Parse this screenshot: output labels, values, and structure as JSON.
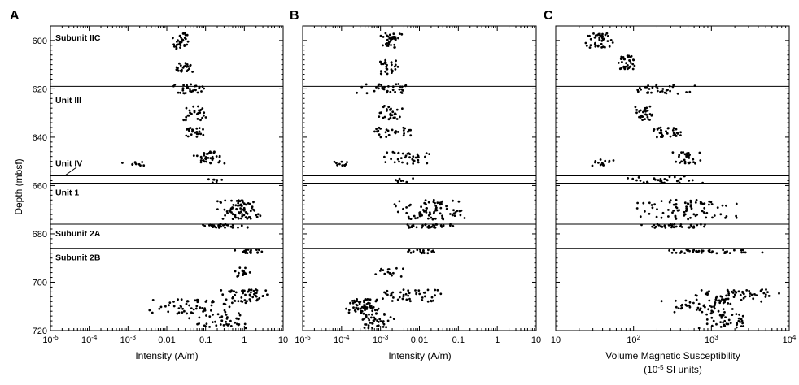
{
  "chart_data": [
    {
      "panel_label": "A",
      "type": "scatter",
      "xscale": "log",
      "xlim": [
        1e-05,
        10
      ],
      "ylim": [
        720,
        594
      ],
      "xlabel": "Intensity (A/m)",
      "xlabel_line2": "",
      "ylabel": "Depth (mbsf)",
      "xticks": [
        {
          "v": 1e-05,
          "base": "10",
          "exp": "-5"
        },
        {
          "v": 0.0001,
          "base": "10",
          "exp": "-4"
        },
        {
          "v": 0.001,
          "base": "10",
          "exp": "-3"
        },
        {
          "v": 0.01,
          "base": "0.01",
          "exp": ""
        },
        {
          "v": 0.1,
          "base": "0.1",
          "exp": ""
        },
        {
          "v": 1,
          "base": "1",
          "exp": ""
        },
        {
          "v": 10,
          "base": "10",
          "exp": ""
        }
      ],
      "yticks": [
        600,
        620,
        640,
        660,
        680,
        700,
        720
      ],
      "clusters": [
        {
          "y": [
            597,
            604
          ],
          "x": [
            0.012,
            0.04
          ],
          "n": 34
        },
        {
          "y": [
            609,
            613
          ],
          "x": [
            0.015,
            0.06
          ],
          "n": 24
        },
        {
          "y": [
            618,
            622
          ],
          "x": [
            0.01,
            0.12
          ],
          "n": 30
        },
        {
          "y": [
            627,
            633
          ],
          "x": [
            0.025,
            0.12
          ],
          "n": 26
        },
        {
          "y": [
            636,
            640
          ],
          "x": [
            0.03,
            0.1
          ],
          "n": 24
        },
        {
          "y": [
            646,
            651
          ],
          "x": [
            0.04,
            0.35
          ],
          "n": 36
        },
        {
          "y": [
            650,
            652
          ],
          "x": [
            0.0005,
            0.004
          ],
          "n": 10
        },
        {
          "y": [
            657,
            659
          ],
          "x": [
            0.1,
            0.3
          ],
          "n": 8
        },
        {
          "y": [
            666,
            674
          ],
          "x": [
            0.2,
            3
          ],
          "n": 78
        },
        {
          "y": [
            676,
            677.5
          ],
          "x": [
            0.05,
            2
          ],
          "n": 30
        },
        {
          "y": [
            686.5,
            688
          ],
          "x": [
            0.5,
            3
          ],
          "n": 22
        },
        {
          "y": [
            694,
            698
          ],
          "x": [
            0.5,
            1.6
          ],
          "n": 18
        },
        {
          "y": [
            703,
            708
          ],
          "x": [
            0.2,
            5
          ],
          "n": 50
        },
        {
          "y": [
            707,
            713
          ],
          "x": [
            0.002,
            2
          ],
          "n": 60
        },
        {
          "y": [
            713,
            719
          ],
          "x": [
            0.02,
            2
          ],
          "n": 40
        }
      ],
      "boundaries": [
        619,
        656,
        659,
        676,
        686
      ]
    },
    {
      "panel_label": "B",
      "type": "scatter",
      "xscale": "log",
      "xlim": [
        1e-05,
        10
      ],
      "ylim": [
        720,
        594
      ],
      "xlabel": "Intensity (A/m)",
      "xlabel_line2": "",
      "ylabel": "",
      "xticks": [
        {
          "v": 1e-05,
          "base": "10",
          "exp": "-5"
        },
        {
          "v": 0.0001,
          "base": "10",
          "exp": "-4"
        },
        {
          "v": 0.001,
          "base": "10",
          "exp": "-3"
        },
        {
          "v": 0.01,
          "base": "0.01",
          "exp": ""
        },
        {
          "v": 0.1,
          "base": "0.1",
          "exp": ""
        },
        {
          "v": 1,
          "base": "1",
          "exp": ""
        },
        {
          "v": 10,
          "base": "10",
          "exp": ""
        }
      ],
      "yticks": [
        600,
        620,
        640,
        660,
        680,
        700,
        720
      ],
      "clusters": [
        {
          "y": [
            597,
            603
          ],
          "x": [
            0.001,
            0.004
          ],
          "n": 34
        },
        {
          "y": [
            608,
            614
          ],
          "x": [
            0.0008,
            0.003
          ],
          "n": 30
        },
        {
          "y": [
            618,
            622
          ],
          "x": [
            0.0002,
            0.01
          ],
          "n": 32
        },
        {
          "y": [
            627,
            633
          ],
          "x": [
            0.0008,
            0.004
          ],
          "n": 28
        },
        {
          "y": [
            636,
            640
          ],
          "x": [
            0.0004,
            0.008
          ],
          "n": 28
        },
        {
          "y": [
            646,
            651
          ],
          "x": [
            0.001,
            0.03
          ],
          "n": 36
        },
        {
          "y": [
            650,
            652
          ],
          "x": [
            3e-05,
            0.0002
          ],
          "n": 10
        },
        {
          "y": [
            657,
            659
          ],
          "x": [
            0.002,
            0.01
          ],
          "n": 8
        },
        {
          "y": [
            666,
            674
          ],
          "x": [
            0.002,
            0.2
          ],
          "n": 78
        },
        {
          "y": [
            676,
            677.5
          ],
          "x": [
            0.002,
            0.1
          ],
          "n": 30
        },
        {
          "y": [
            686.5,
            688
          ],
          "x": [
            0.003,
            0.03
          ],
          "n": 20
        },
        {
          "y": [
            694,
            698
          ],
          "x": [
            0.0005,
            0.005
          ],
          "n": 16
        },
        {
          "y": [
            703,
            708
          ],
          "x": [
            0.0003,
            0.05
          ],
          "n": 48
        },
        {
          "y": [
            707,
            713
          ],
          "x": [
            0.0001,
            0.001
          ],
          "n": 60
        },
        {
          "y": [
            713,
            719
          ],
          "x": [
            0.0002,
            0.003
          ],
          "n": 40
        }
      ],
      "boundaries": [
        619,
        656,
        659,
        676,
        686
      ]
    },
    {
      "panel_label": "C",
      "type": "scatter",
      "xscale": "log",
      "xlim": [
        10,
        10000
      ],
      "ylim": [
        720,
        594
      ],
      "xlabel": "Volume Magnetic Susceptibility",
      "xlabel_line2": "(10-5 SI units)",
      "ylabel": "",
      "xticks": [
        {
          "v": 10,
          "base": "10",
          "exp": ""
        },
        {
          "v": 100,
          "base": "10",
          "exp": "2"
        },
        {
          "v": 1000,
          "base": "10",
          "exp": "3"
        },
        {
          "v": 10000,
          "base": "10",
          "exp": "4"
        }
      ],
      "yticks": [
        600,
        620,
        640,
        660,
        680,
        700,
        720
      ],
      "clusters": [
        {
          "y": [
            597,
            603
          ],
          "x": [
            22,
            60
          ],
          "n": 44
        },
        {
          "y": [
            606,
            612
          ],
          "x": [
            60,
            120
          ],
          "n": 36
        },
        {
          "y": [
            618,
            622
          ],
          "x": [
            70,
            700
          ],
          "n": 32
        },
        {
          "y": [
            627,
            633
          ],
          "x": [
            100,
            200
          ],
          "n": 28
        },
        {
          "y": [
            636,
            640
          ],
          "x": [
            150,
            450
          ],
          "n": 36
        },
        {
          "y": [
            646,
            651
          ],
          "x": [
            280,
            800
          ],
          "n": 30
        },
        {
          "y": [
            649,
            652
          ],
          "x": [
            25,
            60
          ],
          "n": 14
        },
        {
          "y": [
            656,
            659
          ],
          "x": [
            70,
            1000
          ],
          "n": 30
        },
        {
          "y": [
            666,
            674
          ],
          "x": [
            100,
            3000
          ],
          "n": 80
        },
        {
          "y": [
            676,
            677.5
          ],
          "x": [
            100,
            1000
          ],
          "n": 40
        },
        {
          "y": [
            686.5,
            688
          ],
          "x": [
            200,
            5000
          ],
          "n": 44
        },
        {
          "y": [
            703,
            708
          ],
          "x": [
            600,
            8000
          ],
          "n": 60
        },
        {
          "y": [
            707,
            713
          ],
          "x": [
            200,
            3000
          ],
          "n": 50
        },
        {
          "y": [
            713,
            719
          ],
          "x": [
            600,
            4000
          ],
          "n": 40
        }
      ],
      "boundaries": [
        619,
        656,
        659,
        676,
        686
      ]
    }
  ],
  "unit_labels": [
    {
      "text": "Subunit IIC",
      "depth": 600
    },
    {
      "text": "Unit III",
      "depth": 626
    },
    {
      "text": "Unit IV",
      "depth": 652
    },
    {
      "text": "Unit 1",
      "depth": 664
    },
    {
      "text": "Subunit 2A",
      "depth": 681
    },
    {
      "text": "Subunit 2B",
      "depth": 691
    }
  ]
}
